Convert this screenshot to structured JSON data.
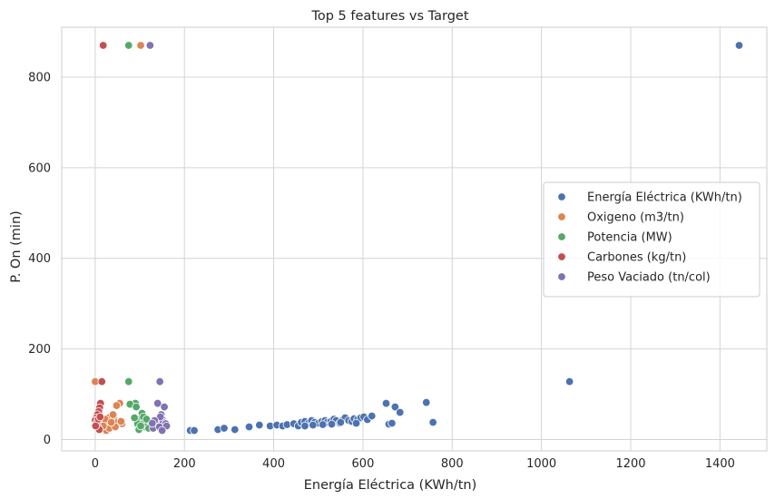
{
  "chart_data": {
    "type": "scatter",
    "title": "Top 5 features vs Target",
    "xlabel": "Energía Eléctrica (KWh/tn)",
    "ylabel": "P. On (min)",
    "xlim": [
      -75,
      1505
    ],
    "ylim": [
      -25,
      910
    ],
    "xticks": [
      0,
      200,
      400,
      600,
      800,
      1000,
      1200,
      1400
    ],
    "yticks": [
      0,
      200,
      400,
      600,
      800
    ],
    "grid": true,
    "legend_position": "right",
    "series": [
      {
        "name": "Energía Eléctrica (KWh/tn)",
        "color": "#4c72b0",
        "points": [
          [
            1443,
            870
          ],
          [
            1063,
            128
          ],
          [
            213,
            20
          ],
          [
            222,
            20
          ],
          [
            275,
            22
          ],
          [
            289,
            25
          ],
          [
            313,
            22
          ],
          [
            345,
            28
          ],
          [
            368,
            32
          ],
          [
            392,
            30
          ],
          [
            407,
            32
          ],
          [
            420,
            30
          ],
          [
            430,
            33
          ],
          [
            445,
            35
          ],
          [
            455,
            30
          ],
          [
            462,
            38
          ],
          [
            470,
            40
          ],
          [
            478,
            36
          ],
          [
            485,
            42
          ],
          [
            492,
            38
          ],
          [
            500,
            36
          ],
          [
            508,
            40
          ],
          [
            515,
            42
          ],
          [
            520,
            38
          ],
          [
            528,
            40
          ],
          [
            535,
            45
          ],
          [
            540,
            42
          ],
          [
            548,
            36
          ],
          [
            555,
            44
          ],
          [
            560,
            48
          ],
          [
            568,
            42
          ],
          [
            575,
            40
          ],
          [
            580,
            46
          ],
          [
            588,
            44
          ],
          [
            595,
            48
          ],
          [
            602,
            50
          ],
          [
            610,
            44
          ],
          [
            620,
            52
          ],
          [
            470,
            30
          ],
          [
            488,
            32
          ],
          [
            510,
            33
          ],
          [
            530,
            34
          ],
          [
            550,
            38
          ],
          [
            585,
            36
          ],
          [
            652,
            80
          ],
          [
            672,
            72
          ],
          [
            683,
            60
          ],
          [
            742,
            82
          ],
          [
            757,
            38
          ],
          [
            658,
            34
          ],
          [
            665,
            36
          ]
        ]
      },
      {
        "name": "Oxigeno (m3/tn)",
        "color": "#dd8452",
        "points": [
          [
            0,
            128
          ],
          [
            102,
            870
          ],
          [
            55,
            80
          ],
          [
            48,
            75
          ],
          [
            35,
            50
          ],
          [
            28,
            40
          ],
          [
            20,
            35
          ],
          [
            42,
            45
          ],
          [
            38,
            30
          ],
          [
            50,
            38
          ],
          [
            60,
            35
          ],
          [
            25,
            20
          ],
          [
            32,
            25
          ],
          [
            45,
            28
          ],
          [
            30,
            48
          ],
          [
            22,
            45
          ],
          [
            40,
            55
          ],
          [
            36,
            38
          ],
          [
            58,
            40
          ],
          [
            18,
            30
          ]
        ]
      },
      {
        "name": "Potencia (MW)",
        "color": "#55a868",
        "points": [
          [
            75,
            870
          ],
          [
            75,
            128
          ],
          [
            90,
            80
          ],
          [
            78,
            78
          ],
          [
            92,
            72
          ],
          [
            105,
            58
          ],
          [
            100,
            45
          ],
          [
            110,
            40
          ],
          [
            95,
            35
          ],
          [
            98,
            22
          ],
          [
            112,
            28
          ],
          [
            118,
            32
          ],
          [
            125,
            38
          ],
          [
            108,
            50
          ],
          [
            88,
            48
          ],
          [
            115,
            45
          ],
          [
            102,
            30
          ],
          [
            120,
            25
          ]
        ]
      },
      {
        "name": "Carbones (kg/tn)",
        "color": "#c44e52",
        "points": [
          [
            18,
            870
          ],
          [
            15,
            128
          ],
          [
            12,
            80
          ],
          [
            10,
            70
          ],
          [
            8,
            62
          ],
          [
            5,
            55
          ],
          [
            3,
            48
          ],
          [
            0,
            42
          ],
          [
            2,
            35
          ],
          [
            6,
            28
          ],
          [
            9,
            22
          ],
          [
            4,
            38
          ],
          [
            7,
            45
          ],
          [
            1,
            30
          ],
          [
            11,
            50
          ]
        ]
      },
      {
        "name": "Peso Vaciado (tn/col)",
        "color": "#8172b3",
        "points": [
          [
            123,
            870
          ],
          [
            145,
            128
          ],
          [
            140,
            80
          ],
          [
            155,
            72
          ],
          [
            148,
            55
          ],
          [
            150,
            45
          ],
          [
            142,
            40
          ],
          [
            138,
            35
          ],
          [
            135,
            30
          ],
          [
            130,
            25
          ],
          [
            152,
            38
          ],
          [
            158,
            35
          ],
          [
            146,
            50
          ],
          [
            133,
            42
          ],
          [
            144,
            28
          ],
          [
            160,
            30
          ],
          [
            128,
            36
          ],
          [
            150,
            20
          ]
        ]
      }
    ]
  }
}
